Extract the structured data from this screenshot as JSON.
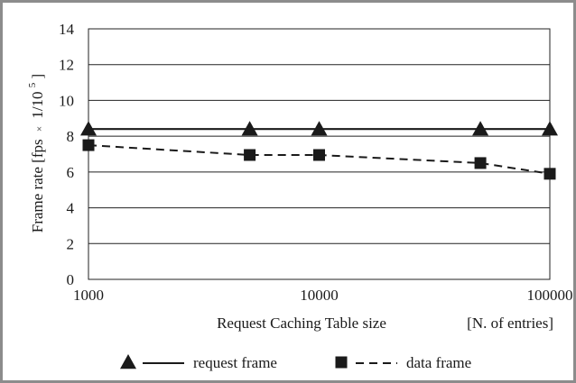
{
  "chart_data": {
    "type": "line",
    "xscale": "log",
    "xlim": [
      1000,
      100000
    ],
    "ylim": [
      0,
      14
    ],
    "yticks": [
      "0",
      "2",
      "4",
      "6",
      "8",
      "10",
      "12",
      "14"
    ],
    "xticks": [
      "1000",
      "10000",
      "100000"
    ],
    "ylabel_main": "Frame rate [fps",
    "ylabel_mult": "×",
    "ylabel_base": "1/10",
    "ylabel_exp": "5",
    "ylabel_close": "]",
    "xlabel": "Request Caching Table size",
    "xlabel_unit": "[N. of entries]",
    "grid": "horizontal",
    "legend_position": "bottom",
    "series": [
      {
        "name": "request frame",
        "marker": "triangle",
        "line": "solid",
        "color": "#1a1a1a",
        "x": [
          1000,
          5000,
          10000,
          50000,
          100000
        ],
        "y": [
          8.4,
          8.4,
          8.4,
          8.4,
          8.4
        ]
      },
      {
        "name": "data frame",
        "marker": "square",
        "line": "dashed",
        "color": "#1a1a1a",
        "x": [
          1000,
          5000,
          10000,
          50000,
          100000
        ],
        "y": [
          7.5,
          6.95,
          6.95,
          6.5,
          5.9
        ]
      }
    ]
  }
}
